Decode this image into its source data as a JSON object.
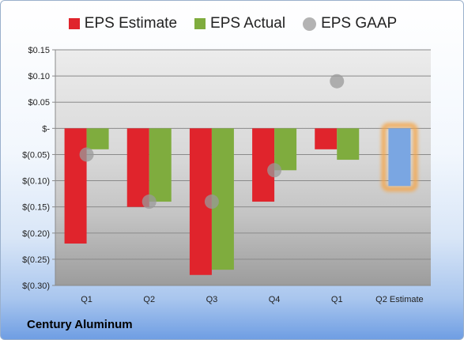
{
  "chart_data": {
    "type": "bar",
    "title": "",
    "xlabel": "",
    "ylabel": "",
    "categories": [
      "Q1",
      "Q2",
      "Q3",
      "Q4",
      "Q1",
      "Q2 Estimate"
    ],
    "series": [
      {
        "name": "EPS Estimate",
        "kind": "bar",
        "color": "#e0242c",
        "values": [
          -0.22,
          -0.15,
          -0.28,
          -0.14,
          -0.04,
          null
        ]
      },
      {
        "name": "EPS Actual",
        "kind": "bar",
        "color": "#7fac3e",
        "values": [
          -0.04,
          -0.14,
          -0.27,
          -0.08,
          -0.06,
          -0.11
        ]
      },
      {
        "name": "EPS GAAP",
        "kind": "marker",
        "color": "#a9a9a9",
        "values": [
          -0.05,
          -0.14,
          -0.14,
          -0.08,
          0.09,
          null
        ]
      }
    ],
    "highlight": {
      "category": "Q2 Estimate",
      "bar_color": "#7aa6e2",
      "glow_color": "#f5a64a"
    },
    "ylim": [
      -0.3,
      0.15
    ],
    "yticks": [
      0.15,
      0.1,
      0.05,
      0,
      -0.05,
      -0.1,
      -0.15,
      -0.2,
      -0.25,
      -0.3
    ],
    "ytick_labels": [
      "$0.15",
      "$0.10",
      "$0.05",
      "$-",
      "$(0.05)",
      "$(0.10)",
      "$(0.15)",
      "$(0.20)",
      "$(0.25)",
      "$(0.30)"
    ],
    "grid": true,
    "legend_position": "top"
  },
  "footer": {
    "company": "Century Aluminum"
  }
}
